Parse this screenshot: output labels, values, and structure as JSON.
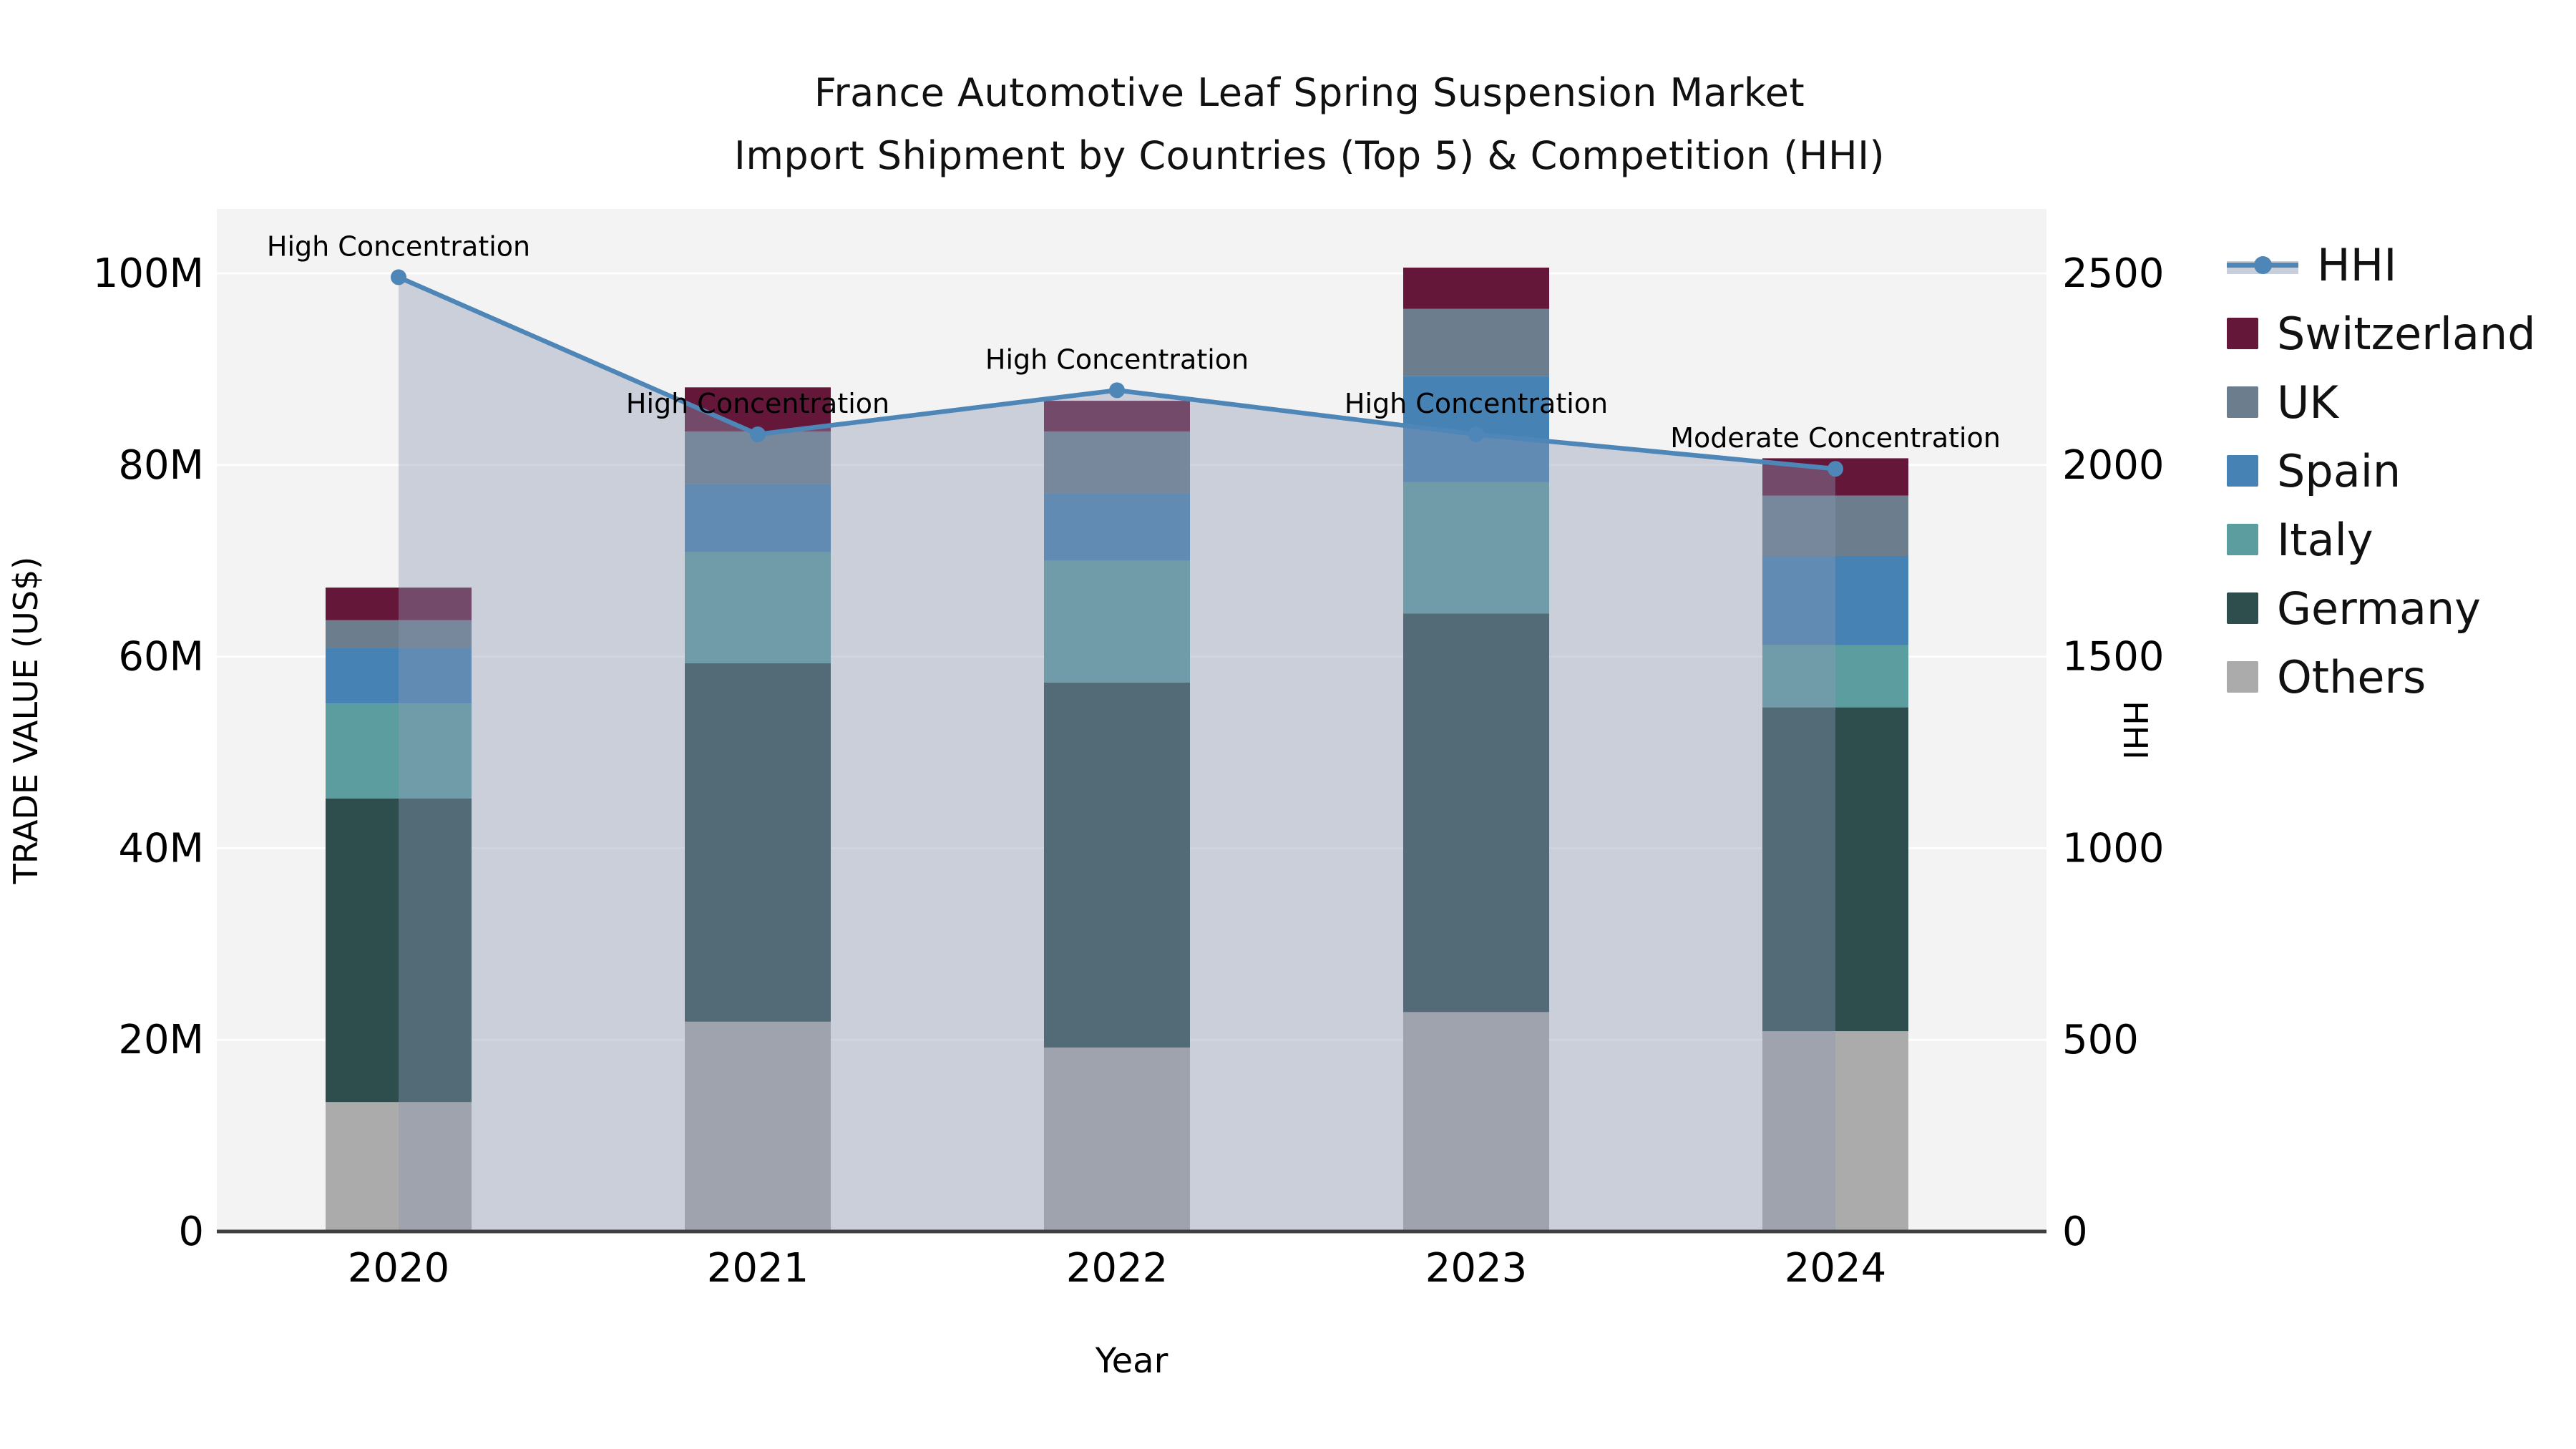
{
  "title": {
    "line1": "France Automotive Leaf Spring Suspension Market",
    "line2": "Import Shipment by Countries (Top 5) & Competition (HHI)"
  },
  "axes": {
    "x_label": "Year",
    "y_left_label": "TRADE VALUE (US$)",
    "y_right_label": "HHI",
    "x_ticks": [
      "2020",
      "2021",
      "2022",
      "2023",
      "2024"
    ],
    "y_left_ticks": [
      "0",
      "20M",
      "40M",
      "60M",
      "80M",
      "100M"
    ],
    "y_right_ticks": [
      "0",
      "500",
      "1000",
      "1500",
      "2000",
      "2500"
    ]
  },
  "legend": {
    "items": [
      {
        "label": "HHI",
        "type": "line",
        "color": "#4E86B8",
        "band_color": "#C9CFDA"
      },
      {
        "label": "Switzerland",
        "type": "patch",
        "color": "#65173A"
      },
      {
        "label": "UK",
        "type": "patch",
        "color": "#6C7D8D"
      },
      {
        "label": "Spain",
        "type": "patch",
        "color": "#4682B4"
      },
      {
        "label": "Italy",
        "type": "patch",
        "color": "#5C9EA0"
      },
      {
        "label": "Germany",
        "type": "patch",
        "color": "#2E4D4D"
      },
      {
        "label": "Others",
        "type": "patch",
        "color": "#ABABAB"
      }
    ]
  },
  "chart_data": {
    "type": "bar",
    "subtype": "stacked-bar-with-hhi-line-and-area",
    "title": "France Automotive Leaf Spring Suspension Market — Import Shipment by Countries (Top 5) & Competition (HHI)",
    "xlabel": "Year",
    "ylabel_left": "TRADE VALUE (US$)",
    "ylabel_right": "HHI",
    "categories": [
      "2020",
      "2021",
      "2022",
      "2023",
      "2024"
    ],
    "unit": "million US$ (trade value), index points (HHI)",
    "ylim_left_musd": [
      0,
      100
    ],
    "ylim_right": [
      0,
      2500
    ],
    "grid": true,
    "legend_position": "right-outside",
    "stack_order_bottom_to_top": [
      "Others",
      "Germany",
      "Italy",
      "Spain",
      "UK",
      "Switzerland"
    ],
    "series": [
      {
        "name": "Others",
        "color": "#ABABAB",
        "values_musd": [
          13.5,
          21.9,
          19.2,
          22.9,
          20.9
        ]
      },
      {
        "name": "Germany",
        "color": "#2E4D4D",
        "values_musd": [
          31.7,
          37.4,
          38.1,
          41.6,
          33.8
        ]
      },
      {
        "name": "Italy",
        "color": "#5C9EA0",
        "values_musd": [
          9.9,
          11.6,
          12.7,
          13.7,
          6.5
        ]
      },
      {
        "name": "Spain",
        "color": "#4682B4",
        "values_musd": [
          5.8,
          7.1,
          7.0,
          11.1,
          9.3
        ]
      },
      {
        "name": "UK",
        "color": "#6C7D8D",
        "values_musd": [
          2.9,
          5.5,
          6.5,
          7.0,
          6.3
        ]
      },
      {
        "name": "Switzerland",
        "color": "#65173A",
        "values_musd": [
          3.4,
          4.6,
          3.2,
          4.3,
          3.9
        ]
      }
    ],
    "totals_musd": [
      67.2,
      88.1,
      86.7,
      100.6,
      80.7
    ],
    "hhi_line": {
      "name": "HHI",
      "color": "#4E86B8",
      "marker": "circle",
      "area_fill_color": "#8D99B5",
      "area_fill_opacity": 0.4,
      "values": [
        2490,
        2080,
        2195,
        2080,
        1990
      ]
    },
    "annotations": [
      {
        "x": "2020",
        "text": "High Concentration"
      },
      {
        "x": "2021",
        "text": "High Concentration"
      },
      {
        "x": "2022",
        "text": "High Concentration"
      },
      {
        "x": "2023",
        "text": "High Concentration"
      },
      {
        "x": "2024",
        "text": "Moderate Concentration"
      }
    ],
    "style": {
      "plot_bg": "#F3F3F4",
      "gridline": "rgba(255,255,255,0.85)",
      "bottom_spine": "#3F3F3F"
    }
  }
}
